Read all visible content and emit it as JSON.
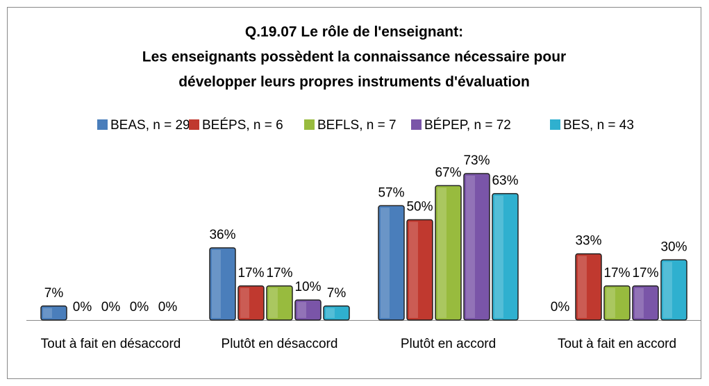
{
  "chart_data": {
    "type": "bar",
    "title": [
      "Q.19.07 Le rôle de l'enseignant:",
      "Les enseignants possèdent la connaissance nécessaire pour",
      "développer leurs propres instruments d'évaluation"
    ],
    "categories": [
      "Tout à fait en désaccord",
      "Plutôt en désaccord",
      "Plutôt en accord",
      "Tout à fait en accord"
    ],
    "series": [
      {
        "name": "BEAS, n = 29",
        "color": "#4a7ebb",
        "values": [
          7,
          36,
          57,
          0
        ],
        "value_labels": [
          "7%",
          "36%",
          "57%",
          "0%"
        ]
      },
      {
        "name": "BEÉPS, n = 6",
        "color": "#c0392f",
        "values": [
          0,
          17,
          50,
          33
        ],
        "value_labels": [
          "0%",
          "17%",
          "50%",
          "33%"
        ]
      },
      {
        "name": "BEFLS, n = 7",
        "color": "#98bb3e",
        "values": [
          0,
          17,
          67,
          17
        ],
        "value_labels": [
          "0%",
          "17%",
          "67%",
          "17%"
        ]
      },
      {
        "name": "BÉPEP, n = 72",
        "color": "#7a55a8",
        "values": [
          0,
          10,
          73,
          17
        ],
        "value_labels": [
          "0%",
          "10%",
          "73%",
          "17%"
        ]
      },
      {
        "name": "BES, n = 43",
        "color": "#2fb0cf",
        "values": [
          0,
          7,
          63,
          30
        ],
        "value_labels": [
          "0%",
          "7%",
          "63%",
          "30%"
        ]
      }
    ],
    "legend": "top"
  }
}
